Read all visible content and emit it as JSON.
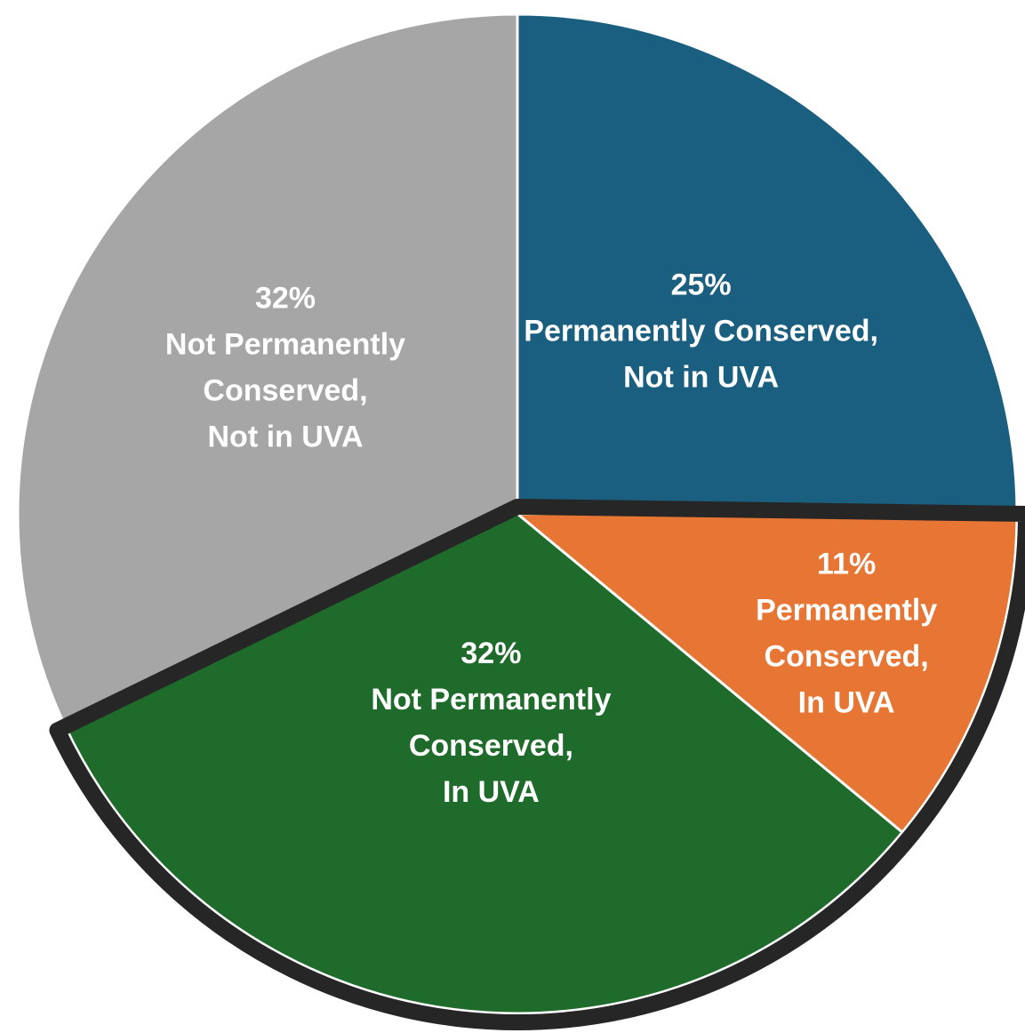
{
  "chart_data": {
    "type": "pie",
    "title": "",
    "start": "12 o'clock, clockwise",
    "slices": [
      {
        "label_lines": [
          "25%",
          "Permanently Conserved,",
          "Not in UVA"
        ],
        "value": 25,
        "color": "#1a5e80",
        "highlighted": false
      },
      {
        "label_lines": [
          "11%",
          "Permanently",
          "Conserved,",
          "In UVA"
        ],
        "value": 11,
        "color": "#e77534",
        "highlighted": true
      },
      {
        "label_lines": [
          "32%",
          "Not Permanently",
          "Conserved,",
          "In UVA"
        ],
        "value": 32,
        "color": "#1f6b2b",
        "highlighted": true
      },
      {
        "label_lines": [
          "32%",
          "Not Permanently",
          "Conserved,",
          "Not in UVA"
        ],
        "value": 32,
        "color": "#a6a6a6",
        "highlighted": false
      }
    ],
    "highlight_outline_color": "#262626",
    "slice_edge_color": "#ffffff"
  }
}
